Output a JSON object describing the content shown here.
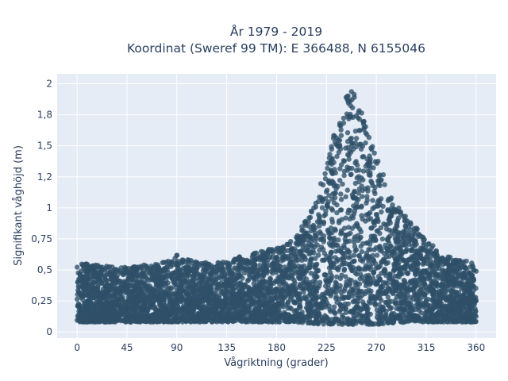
{
  "chart_data": {
    "type": "scatter",
    "title": [
      "År 1979 - 2019",
      "Koordinat (Sweref 99 TM): E 366488, N 6155046"
    ],
    "xlabel": "Vågriktning (grader)",
    "ylabel": "Signifikant våghöjd (m)",
    "xlim": [
      -18,
      378
    ],
    "ylim": [
      -0.05,
      2.08
    ],
    "xticks": [
      0,
      45,
      90,
      135,
      180,
      225,
      270,
      315,
      360
    ],
    "xtick_labels": [
      "0",
      "45",
      "90",
      "135",
      "180",
      "225",
      "270",
      "315",
      "360"
    ],
    "yticks": [
      0,
      0.25,
      0.5,
      0.75,
      1,
      1.25,
      1.5,
      1.75,
      2
    ],
    "ytick_labels": [
      "0",
      "0,25",
      "0,5",
      "0,75",
      "1",
      "1,2",
      "1,5",
      "1,8",
      "2"
    ],
    "grid": true,
    "marker_color": "#2e5068",
    "plot_background": "#e5ecf6",
    "point_cloud_profile": {
      "direction_deg": [
        0,
        15,
        30,
        45,
        60,
        75,
        90,
        105,
        120,
        135,
        150,
        165,
        180,
        195,
        210,
        225,
        232,
        240,
        248,
        255,
        262,
        270,
        285,
        300,
        315,
        330,
        345,
        360
      ],
      "height_min_m": [
        0.08,
        0.08,
        0.08,
        0.08,
        0.08,
        0.08,
        0.08,
        0.08,
        0.08,
        0.08,
        0.08,
        0.08,
        0.08,
        0.08,
        0.07,
        0.06,
        0.06,
        0.06,
        0.06,
        0.06,
        0.06,
        0.06,
        0.07,
        0.08,
        0.08,
        0.08,
        0.08,
        0.08
      ],
      "height_max_m": [
        0.56,
        0.54,
        0.53,
        0.52,
        0.54,
        0.55,
        0.62,
        0.58,
        0.56,
        0.57,
        0.62,
        0.65,
        0.68,
        0.75,
        0.95,
        1.35,
        1.6,
        1.9,
        1.97,
        1.85,
        1.6,
        1.45,
        1.05,
        0.9,
        0.75,
        0.62,
        0.58,
        0.56
      ]
    }
  }
}
